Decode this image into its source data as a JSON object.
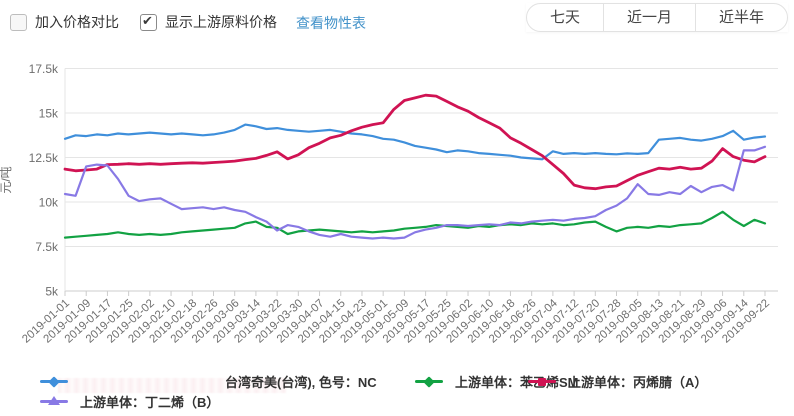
{
  "toolbar": {
    "compare_checkbox": {
      "label": "加入价格对比",
      "checked": false
    },
    "upstream_checkbox": {
      "label": "显示上游原料价格",
      "checked": true
    },
    "properties_link": "查看物性表",
    "range_buttons": [
      "七天",
      "近一月",
      "近半年"
    ]
  },
  "chart_data": {
    "type": "line",
    "title": "",
    "xlabel": "",
    "ylabel": "元/吨",
    "ylim": [
      5000,
      17500
    ],
    "grid": "horizontal",
    "legend_position": "bottom",
    "y_tick_values": [
      17500,
      15000,
      12500,
      10000,
      7500,
      5000
    ],
    "y_tick_labels": [
      "17.5k",
      "15k",
      "12.5k",
      "10k",
      "7.5k",
      "5k"
    ],
    "x_start": "2019-01-01",
    "x_step_days": 4,
    "x_tick_every": 2,
    "x_tick_labels": [
      "2019-01-01",
      "2019-01-09",
      "2019-01-17",
      "2019-01-25",
      "2019-02-02",
      "2019-02-10",
      "2019-02-18",
      "2019-02-26",
      "2019-03-06",
      "2019-03-14",
      "2019-03-22",
      "2019-03-30",
      "2019-04-07",
      "2019-04-15",
      "2019-04-23",
      "2019-05-01",
      "2019-05-09",
      "2019-05-17",
      "2019-05-25",
      "2019-06-02",
      "2019-06-10",
      "2019-06-18",
      "2019-06-26",
      "2019-07-04",
      "2019-07-12",
      "2019-07-20",
      "2019-07-28",
      "2019-08-05",
      "2019-08-13",
      "2019-08-21",
      "2019-08-29",
      "2019-09-06",
      "2019-09-14",
      "2019-09-22"
    ],
    "series": [
      {
        "id": "nc",
        "name": "台湾奇美(台湾), 色号：NC",
        "color": "#3F8FDB",
        "symbol": "diamond",
        "line_width": 2.2,
        "values": [
          13550,
          13750,
          13700,
          13800,
          13750,
          13850,
          13800,
          13850,
          13900,
          13850,
          13800,
          13850,
          13800,
          13750,
          13800,
          13900,
          14050,
          14350,
          14250,
          14100,
          14150,
          14050,
          14000,
          13950,
          14000,
          14050,
          13950,
          13850,
          13800,
          13700,
          13550,
          13500,
          13350,
          13150,
          13050,
          12950,
          12800,
          12900,
          12850,
          12750,
          12700,
          12650,
          12600,
          12500,
          12450,
          12400,
          12850,
          12700,
          12750,
          12700,
          12750,
          12700,
          12680,
          12730,
          12700,
          12750,
          13500,
          13550,
          13600,
          13500,
          13450,
          13550,
          13700,
          14000,
          13500,
          13620,
          13680
        ]
      },
      {
        "id": "sm",
        "name": "上游单体：苯乙烯SM",
        "color": "#12A243",
        "symbol": "diamond",
        "line_width": 2.2,
        "values": [
          8000,
          8050,
          8100,
          8150,
          8200,
          8300,
          8200,
          8150,
          8200,
          8150,
          8200,
          8300,
          8350,
          8400,
          8450,
          8500,
          8550,
          8800,
          8900,
          8600,
          8550,
          8200,
          8350,
          8400,
          8450,
          8400,
          8350,
          8300,
          8350,
          8300,
          8350,
          8400,
          8500,
          8550,
          8600,
          8700,
          8650,
          8600,
          8550,
          8650,
          8600,
          8700,
          8750,
          8700,
          8800,
          8750,
          8800,
          8700,
          8750,
          8850,
          8900,
          8600,
          8350,
          8550,
          8600,
          8550,
          8650,
          8600,
          8700,
          8750,
          8800,
          9100,
          9450,
          9000,
          8650,
          9000,
          8800
        ]
      },
      {
        "id": "an",
        "name": "上游单体：丙烯腈（A）",
        "color": "#D01353",
        "symbol": "square",
        "line_width": 2.8,
        "values": [
          11850,
          11750,
          11800,
          11850,
          12100,
          12120,
          12150,
          12120,
          12150,
          12120,
          12150,
          12180,
          12200,
          12180,
          12220,
          12250,
          12300,
          12380,
          12450,
          12620,
          12820,
          12420,
          12650,
          13050,
          13300,
          13600,
          13750,
          14000,
          14200,
          14350,
          14450,
          15200,
          15700,
          15850,
          16000,
          15950,
          15650,
          15350,
          15100,
          14750,
          14450,
          14150,
          13600,
          13300,
          12950,
          12600,
          12100,
          11600,
          10950,
          10800,
          10750,
          10850,
          10900,
          11200,
          11500,
          11700,
          11900,
          11850,
          11950,
          11850,
          11900,
          12300,
          13000,
          12550,
          12350,
          12250,
          12550
        ]
      },
      {
        "id": "bd",
        "name": "上游单体：丁二烯（B）",
        "color": "#8879E5",
        "symbol": "triangle",
        "line_width": 2.2,
        "values": [
          10450,
          10350,
          12000,
          12100,
          12050,
          11300,
          10350,
          10050,
          10150,
          10200,
          9900,
          9600,
          9650,
          9700,
          9600,
          9700,
          9550,
          9450,
          9150,
          8900,
          8400,
          8700,
          8600,
          8350,
          8150,
          8050,
          8200,
          8050,
          8000,
          7950,
          8000,
          7950,
          8000,
          8300,
          8450,
          8550,
          8700,
          8700,
          8650,
          8700,
          8750,
          8700,
          8850,
          8800,
          8900,
          8950,
          9000,
          8950,
          9050,
          9100,
          9200,
          9550,
          9800,
          10200,
          11000,
          10450,
          10400,
          10550,
          10450,
          10900,
          10550,
          10850,
          10950,
          10650,
          12900,
          12900,
          13100
        ]
      }
    ]
  },
  "style_colors": {
    "grid_line": "#e5e5e5",
    "axis_line": "#cccccc",
    "tick_text": "#6e6e6e",
    "legend_text": "#333333",
    "link_blue": "#4292c9"
  }
}
